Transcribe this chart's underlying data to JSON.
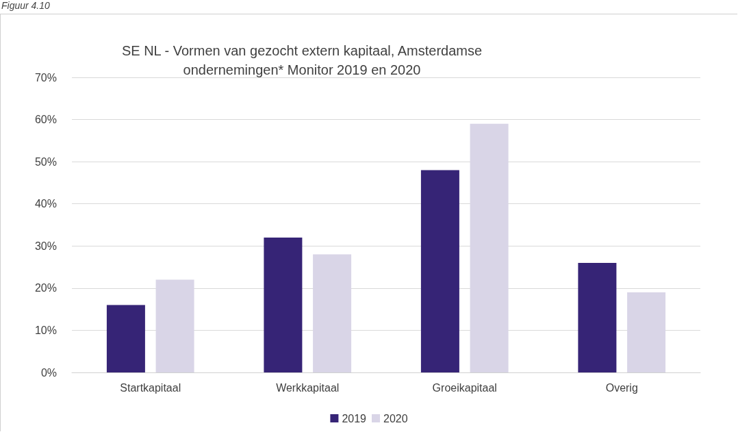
{
  "chart_data": {
    "type": "bar",
    "title": "SE NL - Vormen van gezocht extern kapitaal, Amsterdamse\nondernemingen* Monitor 2019 en 2020",
    "annotations": [
      "Figuur 4.10"
    ],
    "categories": [
      "Startkapitaal",
      "Werkkapitaal",
      "Groeikapitaal",
      "Overig"
    ],
    "series": [
      {
        "name": "2019",
        "color": "#362476",
        "values": [
          16,
          32,
          48,
          26
        ]
      },
      {
        "name": "2020",
        "color": "#d9d5e7",
        "values": [
          22,
          28,
          59,
          19
        ]
      }
    ],
    "ylim": [
      0,
      70
    ],
    "yticks": [
      {
        "value": 0,
        "label": "0%"
      },
      {
        "value": 10,
        "label": "10%"
      },
      {
        "value": 20,
        "label": "20%"
      },
      {
        "value": 30,
        "label": "30%"
      },
      {
        "value": 40,
        "label": "40%"
      },
      {
        "value": 50,
        "label": "50%"
      },
      {
        "value": 60,
        "label": "60%"
      },
      {
        "value": 70,
        "label": "70%"
      }
    ],
    "grid": "y",
    "legend": "bottom"
  }
}
